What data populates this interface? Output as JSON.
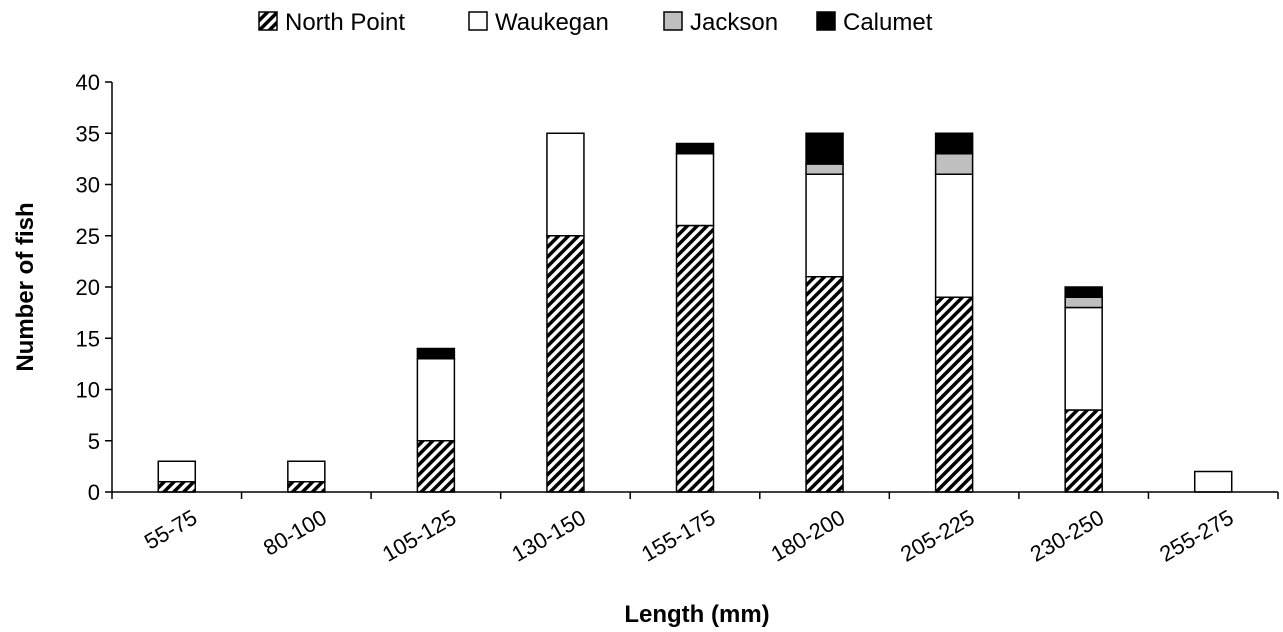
{
  "chart_data": {
    "type": "bar",
    "stacked": true,
    "categories": [
      "55-75",
      "80-100",
      "105-125",
      "130-150",
      "155-175",
      "180-200",
      "205-225",
      "230-250",
      "255-275"
    ],
    "series": [
      {
        "name": "North Point",
        "fill": "hatch",
        "values": [
          1,
          1,
          5,
          25,
          26,
          21,
          19,
          8,
          0
        ]
      },
      {
        "name": "Waukegan",
        "fill": "#ffffff",
        "values": [
          2,
          2,
          8,
          10,
          7,
          10,
          12,
          10,
          2
        ]
      },
      {
        "name": "Jackson",
        "fill": "#bfbfbf",
        "values": [
          0,
          0,
          0,
          0,
          0,
          1,
          2,
          1,
          0
        ]
      },
      {
        "name": "Calumet",
        "fill": "#000000",
        "values": [
          0,
          0,
          1,
          0,
          1,
          3,
          2,
          1,
          0
        ]
      }
    ],
    "xlabel": "Length (mm)",
    "ylabel": "Number of fish",
    "ylim": [
      0,
      40
    ],
    "yticks": [
      0,
      5,
      10,
      15,
      20,
      25,
      30,
      35,
      40
    ],
    "grid": false,
    "legend_position": "top"
  }
}
